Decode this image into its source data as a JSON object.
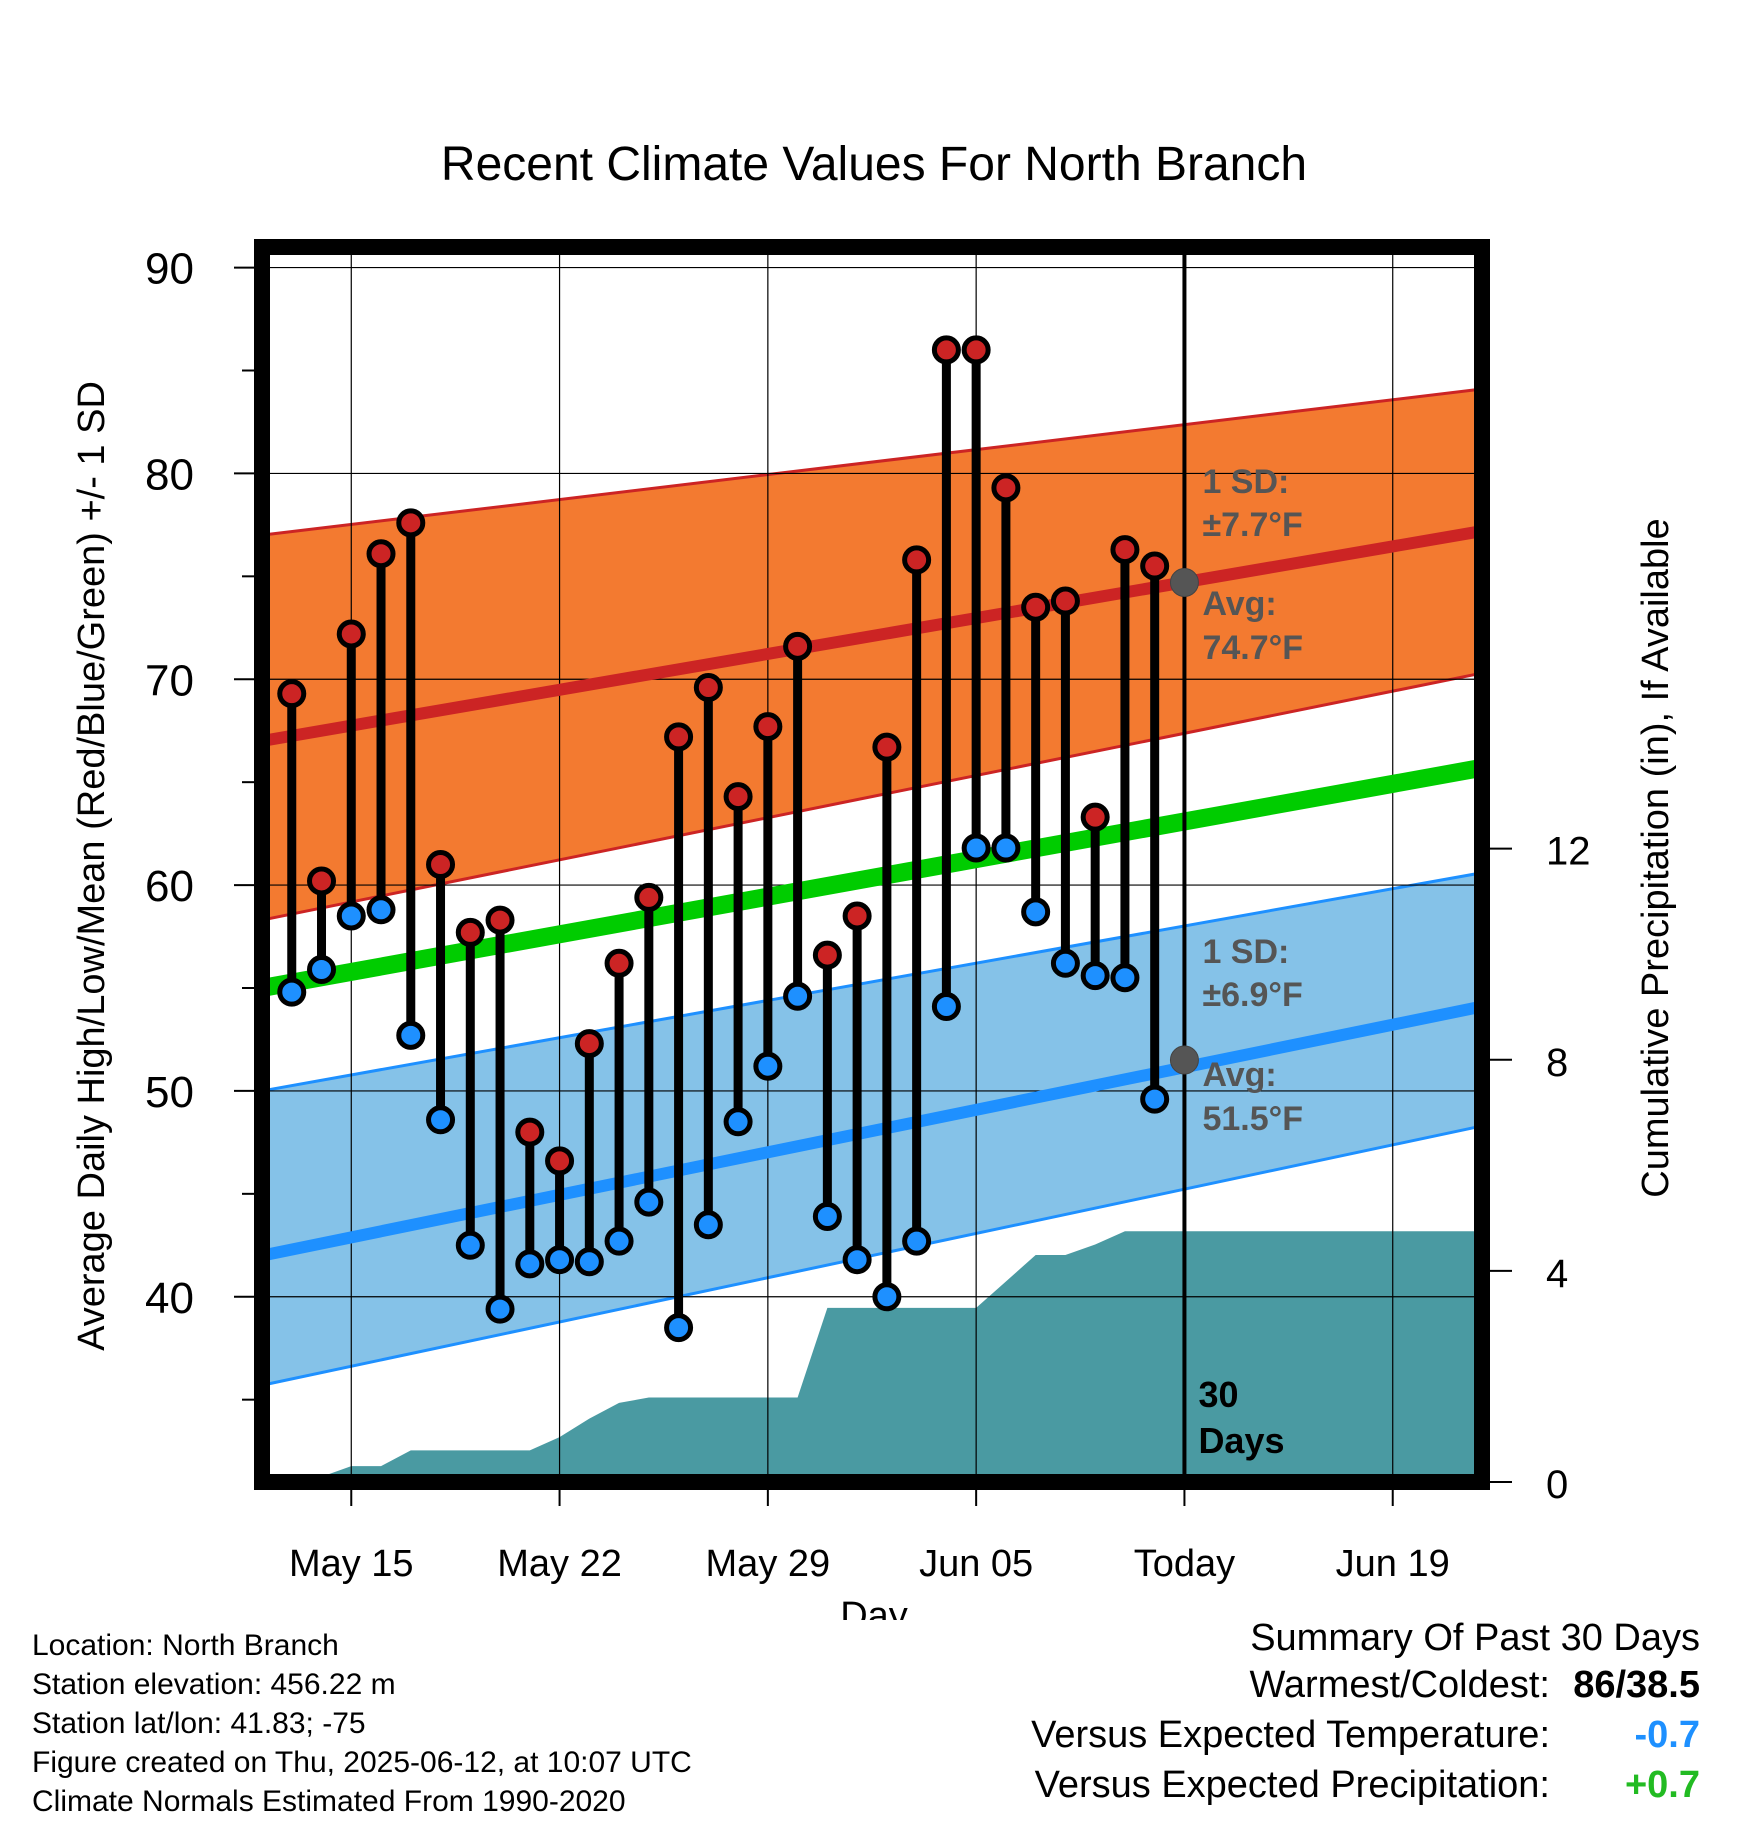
{
  "chart_data": {
    "type": "line",
    "title": "Recent Climate Values For North Branch",
    "xlabel": "Day",
    "ylabel_left": "Average Daily High/Low/Mean (Red/Blue/Green) +/- 1 SD",
    "ylabel_right": "Cumulative Precipitation (in), If Available",
    "ylim": [
      31,
      91
    ],
    "y2lim": [
      0,
      23.4
    ],
    "yticks": [
      40,
      50,
      60,
      70,
      80,
      90
    ],
    "y2ticks": [
      0,
      4,
      8,
      12
    ],
    "xlim": [
      "2025-05-12",
      "2025-06-22"
    ],
    "xticks": [
      {
        "date": "2025-05-15",
        "label": "May 15"
      },
      {
        "date": "2025-05-22",
        "label": "May 22"
      },
      {
        "date": "2025-05-29",
        "label": "May 29"
      },
      {
        "date": "2025-06-05",
        "label": "Jun 05"
      },
      {
        "date": "2025-06-12",
        "label": "Today"
      },
      {
        "date": "2025-06-19",
        "label": "Jun 19"
      }
    ],
    "grid": true,
    "today": "2025-06-12",
    "today_label": [
      "30",
      "Days"
    ],
    "daily": [
      {
        "date": "2025-05-13",
        "high": 69.3,
        "low": 54.8
      },
      {
        "date": "2025-05-14",
        "high": 60.2,
        "low": 55.9
      },
      {
        "date": "2025-05-15",
        "high": 72.2,
        "low": 58.5
      },
      {
        "date": "2025-05-16",
        "high": 76.1,
        "low": 58.8
      },
      {
        "date": "2025-05-17",
        "high": 77.6,
        "low": 52.7
      },
      {
        "date": "2025-05-18",
        "high": 61.0,
        "low": 48.6
      },
      {
        "date": "2025-05-19",
        "high": 57.7,
        "low": 42.5
      },
      {
        "date": "2025-05-20",
        "high": 58.3,
        "low": 39.4
      },
      {
        "date": "2025-05-21",
        "high": 48.0,
        "low": 41.6
      },
      {
        "date": "2025-05-22",
        "high": 46.6,
        "low": 41.8
      },
      {
        "date": "2025-05-23",
        "high": 52.3,
        "low": 41.7
      },
      {
        "date": "2025-05-24",
        "high": 56.2,
        "low": 42.7
      },
      {
        "date": "2025-05-25",
        "high": 59.4,
        "low": 44.6
      },
      {
        "date": "2025-05-26",
        "high": 67.2,
        "low": 38.5
      },
      {
        "date": "2025-05-27",
        "high": 69.6,
        "low": 43.5
      },
      {
        "date": "2025-05-28",
        "high": 64.3,
        "low": 48.5
      },
      {
        "date": "2025-05-29",
        "high": 67.7,
        "low": 51.2
      },
      {
        "date": "2025-05-30",
        "high": 71.6,
        "low": 54.6
      },
      {
        "date": "2025-05-31",
        "high": 56.6,
        "low": 43.9
      },
      {
        "date": "2025-06-01",
        "high": 58.5,
        "low": 41.8
      },
      {
        "date": "2025-06-02",
        "high": 66.7,
        "low": 40.0
      },
      {
        "date": "2025-06-03",
        "high": 75.8,
        "low": 42.7
      },
      {
        "date": "2025-06-04",
        "high": 86.0,
        "low": 54.1
      },
      {
        "date": "2025-06-05",
        "high": 86.0,
        "low": 61.8
      },
      {
        "date": "2025-06-06",
        "high": 79.3,
        "low": 61.8
      },
      {
        "date": "2025-06-07",
        "high": 73.5,
        "low": 58.7
      },
      {
        "date": "2025-06-08",
        "high": 73.8,
        "low": 56.2
      },
      {
        "date": "2025-06-09",
        "high": 63.3,
        "low": 55.6
      },
      {
        "date": "2025-06-10",
        "high": 76.3,
        "low": 55.5
      },
      {
        "date": "2025-06-11",
        "high": 75.5,
        "low": 49.6
      }
    ],
    "normals": {
      "dates": [
        "2025-05-12",
        "2025-06-22"
      ],
      "high_mean": [
        67.0,
        77.2
      ],
      "high_upper": [
        77.0,
        84.1
      ],
      "high_lower": [
        58.3,
        70.3
      ],
      "low_mean": [
        42.0,
        54.1
      ],
      "low_upper": [
        50.0,
        60.6
      ],
      "low_lower": [
        35.7,
        48.3
      ],
      "mean": [
        55.0,
        65.7
      ]
    },
    "precipitation": [
      {
        "date": "2025-05-12",
        "value": 0.0
      },
      {
        "date": "2025-05-13",
        "value": 0.0
      },
      {
        "date": "2025-05-14",
        "value": 0.1
      },
      {
        "date": "2025-05-15",
        "value": 0.3
      },
      {
        "date": "2025-05-16",
        "value": 0.3
      },
      {
        "date": "2025-05-17",
        "value": 0.6
      },
      {
        "date": "2025-05-18",
        "value": 0.6
      },
      {
        "date": "2025-05-19",
        "value": 0.6
      },
      {
        "date": "2025-05-20",
        "value": 0.6
      },
      {
        "date": "2025-05-21",
        "value": 0.6
      },
      {
        "date": "2025-05-22",
        "value": 0.85
      },
      {
        "date": "2025-05-23",
        "value": 1.2
      },
      {
        "date": "2025-05-24",
        "value": 1.5
      },
      {
        "date": "2025-05-25",
        "value": 1.6
      },
      {
        "date": "2025-05-26",
        "value": 1.6
      },
      {
        "date": "2025-05-27",
        "value": 1.6
      },
      {
        "date": "2025-05-28",
        "value": 1.6
      },
      {
        "date": "2025-05-29",
        "value": 1.6
      },
      {
        "date": "2025-05-30",
        "value": 1.6
      },
      {
        "date": "2025-05-31",
        "value": 3.3
      },
      {
        "date": "2025-06-01",
        "value": 3.3
      },
      {
        "date": "2025-06-02",
        "value": 3.3
      },
      {
        "date": "2025-06-03",
        "value": 3.3
      },
      {
        "date": "2025-06-04",
        "value": 3.3
      },
      {
        "date": "2025-06-05",
        "value": 3.3
      },
      {
        "date": "2025-06-06",
        "value": 3.8
      },
      {
        "date": "2025-06-07",
        "value": 4.3
      },
      {
        "date": "2025-06-08",
        "value": 4.3
      },
      {
        "date": "2025-06-09",
        "value": 4.5
      },
      {
        "date": "2025-06-10",
        "value": 4.75
      },
      {
        "date": "2025-06-11",
        "value": 4.75
      },
      {
        "date": "2025-06-12",
        "value": 4.75
      },
      {
        "date": "2025-06-22",
        "value": 4.75
      }
    ],
    "annotations": {
      "high_sd": [
        "1 SD:",
        "±7.7°F"
      ],
      "high_avg": [
        "Avg:",
        "74.7°F"
      ],
      "high_avg_value": 74.7,
      "low_sd": [
        "1 SD:",
        "±6.9°F"
      ],
      "low_avg": [
        "Avg:",
        "51.5°F"
      ],
      "low_avg_value": 51.5
    },
    "colors": {
      "high_band": "#f37a30",
      "high_line": "#cc2424",
      "low_band": "#85c2e8",
      "low_line": "#1e90ff",
      "mean_line": "#00cc00",
      "precip": "#4a9aa2",
      "high_marker": "#cc2424",
      "low_marker": "#1e90ff",
      "annotation_text": "#555555"
    }
  },
  "footer": {
    "location": "Location: North Branch",
    "elevation": "Station elevation: 456.22 m",
    "latlon": "Station lat/lon: 41.83; -75",
    "created": "Figure created on Thu, 2025-06-12, at 10:07 UTC",
    "normals": "Climate Normals Estimated From 1990-2020"
  },
  "summary": {
    "title": "Summary Of Past 30 Days",
    "warmest_label": "Warmest/Coldest:",
    "warmest_value": "86/38.5",
    "temp_label": "Versus Expected Temperature:",
    "temp_value": "-0.7",
    "temp_color": "#1e90ff",
    "precip_label": "Versus Expected Precipitation:",
    "precip_value": "+0.7",
    "precip_color": "#22bb22"
  }
}
